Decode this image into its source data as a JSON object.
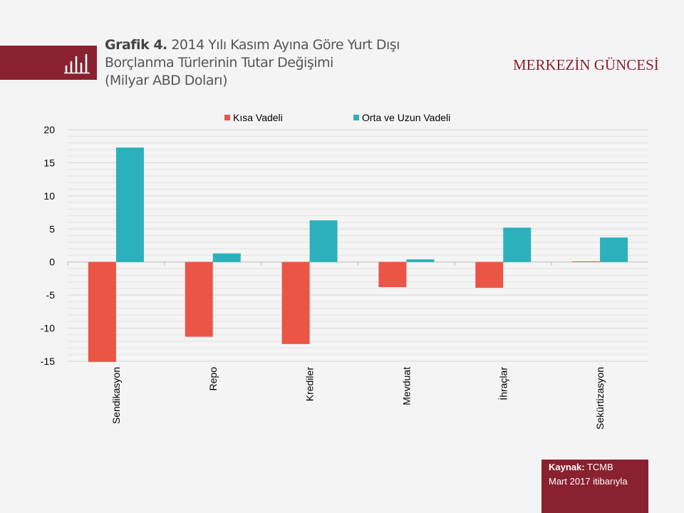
{
  "header": {
    "title_bold": "Grafik 4.",
    "title_line1": "2014 Yılı Kasım Ayına Göre Yurt Dışı",
    "title_line2": "Borçlanma Türlerinin Tutar Değişimi",
    "title_line3": "(Milyar ABD Doları)",
    "brand": "MERKEZİN GÜNCESİ"
  },
  "source": {
    "label": "Kaynak:",
    "value": "TCMB",
    "date": "Mart 2017 itibarıyla"
  },
  "chart_data": {
    "type": "bar",
    "title": "2014 Yılı Kasım Ayına Göre Yurt Dışı Borçlanma Türlerinin Tutar Değişimi (Milyar ABD Doları)",
    "categories": [
      "Sendikasyon",
      "Repo",
      "Krediler",
      "Mevduat",
      "İhraçlar",
      "Sekürtizasyon"
    ],
    "series": [
      {
        "name": "Kısa Vadeli",
        "color": "#ea5545",
        "values": [
          -15.1,
          -11.3,
          -12.4,
          -3.8,
          -3.9,
          0.1
        ]
      },
      {
        "name": "Orta ve Uzun Vadeli",
        "color": "#2bb1bb",
        "values": [
          17.3,
          1.3,
          6.3,
          0.4,
          5.2,
          3.7
        ]
      }
    ],
    "ylim": [
      -15,
      20
    ],
    "yticks": [
      20,
      15,
      10,
      5,
      0,
      -5,
      -10,
      -15
    ],
    "yticklabels": [
      "20",
      "15",
      "10",
      "5",
      "0",
      "-5",
      "-10",
      "-15"
    ],
    "legend": "top",
    "grid": true
  }
}
